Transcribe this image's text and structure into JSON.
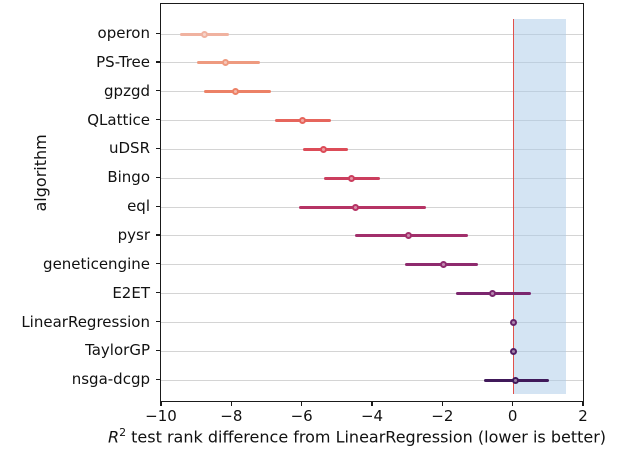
{
  "figure": {
    "ylabel": "algorithm",
    "xlabel_var": "R",
    "xlabel_sup": "2",
    "xlabel_rest": " test rank difference from LinearRegression (lower is better)"
  },
  "chart_data": {
    "type": "scatter",
    "subtype": "horizontal-errorbar-forest-plot",
    "title": "",
    "xlabel": "R² test rank difference from LinearRegression (lower is better)",
    "ylabel": "algorithm",
    "categories": [
      "operon",
      "PS-Tree",
      "gpzgd",
      "QLattice",
      "uDSR",
      "Bingo",
      "eql",
      "pysr",
      "geneticengine",
      "E2ET",
      "LinearRegression",
      "TaylorGP",
      "nsga-dcgp"
    ],
    "values": [
      -8.8,
      -8.2,
      -7.9,
      -6.0,
      -5.4,
      -4.6,
      -4.5,
      -3.0,
      -2.0,
      -0.6,
      0.0,
      0.0,
      0.05
    ],
    "ci_low": [
      -9.5,
      -9.0,
      -8.8,
      -6.8,
      -6.0,
      -5.4,
      -6.1,
      -4.5,
      -3.1,
      -1.65,
      0.0,
      0.0,
      -0.85
    ],
    "ci_high": [
      -8.1,
      -7.2,
      -6.9,
      -5.2,
      -4.7,
      -3.8,
      -2.5,
      -1.3,
      -1.0,
      0.5,
      0.0,
      0.0,
      1.0
    ],
    "colors": [
      "#f0b2a0",
      "#ee9a7f",
      "#ec8166",
      "#e6655c",
      "#dc4c58",
      "#cb3e5e",
      "#b63465",
      "#a22f6b",
      "#8e2a6e",
      "#7b266e",
      "#672269",
      "#531e63",
      "#40195a"
    ],
    "xlim": [
      -10,
      2
    ],
    "xticks": [
      -10,
      -8,
      -6,
      -4,
      -2,
      0,
      2
    ],
    "xtick_labels": [
      "−10",
      "−8",
      "−6",
      "−4",
      "−2",
      "0",
      "2"
    ],
    "grid": "horizontal",
    "legend": "none",
    "reference_line": {
      "x": 0,
      "color": "#e0514c"
    },
    "shaded_region": {
      "x_from": 0,
      "x_to": 1.5,
      "color": "#a9c9e8",
      "opacity": 0.5
    }
  }
}
